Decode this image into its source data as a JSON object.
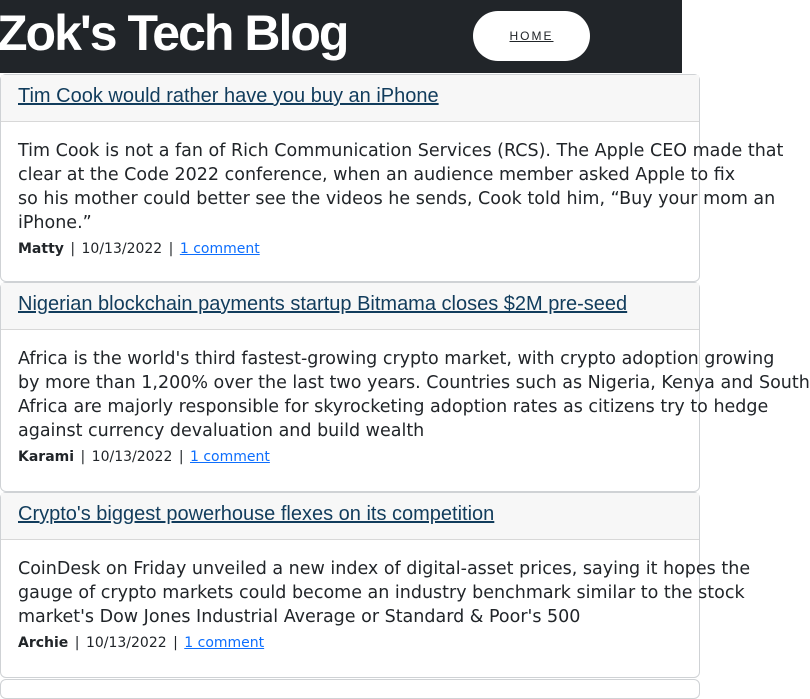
{
  "header": {
    "site_title": "Zok's Tech Blog",
    "home_label": "HOME"
  },
  "posts": [
    {
      "title": "Tim Cook would rather have you buy an iPhone",
      "excerpt_lines": [
        "Tim Cook is not a fan of Rich Communication Services (RCS). The Apple CEO made that",
        "clear at the Code 2022 conference, when an audience member asked Apple to fix",
        "so his mother could better see the videos he sends, Cook told him, “Buy your mom an",
        "iPhone.”"
      ],
      "author": "Matty",
      "date": "10/13/2022",
      "comments": "1 comment"
    },
    {
      "title": "Nigerian blockchain payments startup Bitmama closes $2M pre-seed",
      "excerpt_lines": [
        "Africa is the world's third fastest-growing crypto market, with crypto adoption growing",
        "by more than 1,200% over the last two years. Countries such as Nigeria, Kenya and South",
        "Africa are majorly responsible for skyrocketing adoption rates as citizens try to hedge",
        "against currency devaluation and build wealth"
      ],
      "author": "Karami",
      "date": "10/13/2022",
      "comments": "1 comment"
    },
    {
      "title": "Crypto's biggest powerhouse flexes on its competition",
      "excerpt_lines": [
        "CoinDesk on Friday unveiled a new index of digital-asset prices, saying it hopes the",
        "gauge of crypto markets could become an industry benchmark similar to the stock",
        "market's Dow Jones Industrial Average or Standard & Poor's 500"
      ],
      "author": "Archie",
      "date": "10/13/2022",
      "comments": "1 comment"
    }
  ]
}
